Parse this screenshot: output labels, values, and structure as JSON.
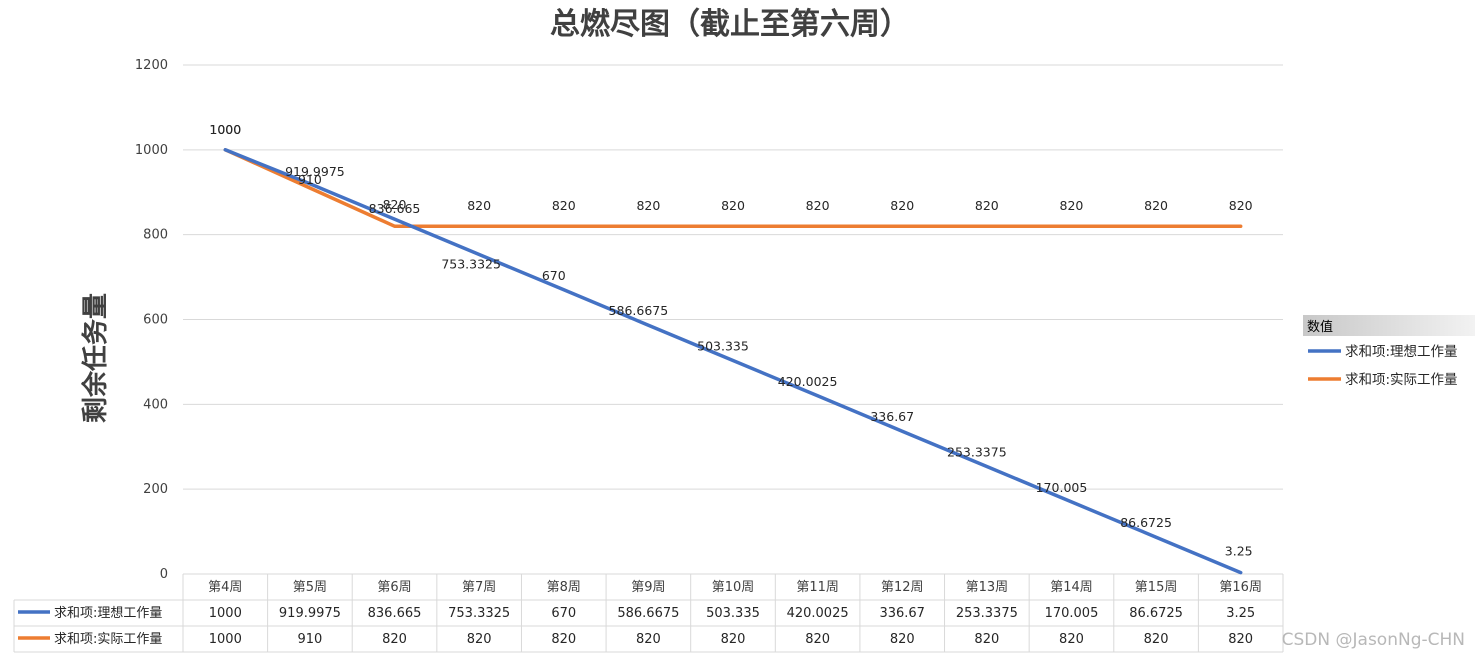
{
  "chart_data": {
    "type": "line",
    "title": "总燃尽图（截止至第六周）",
    "ylabel": "剩余任务量",
    "xlabel": "",
    "ylim": [
      0,
      1200
    ],
    "yticks": [
      0,
      200,
      400,
      600,
      800,
      1000,
      1200
    ],
    "grid": true,
    "categories": [
      "第4周",
      "第5周",
      "第6周",
      "第7周",
      "第8周",
      "第9周",
      "第10周",
      "第11周",
      "第12周",
      "第13周",
      "第14周",
      "第15周",
      "第16周"
    ],
    "series": [
      {
        "name": "求和项:理想工作量",
        "color": "#4472c4",
        "values": [
          1000,
          919.9975,
          836.665,
          753.3325,
          670,
          586.6675,
          503.335,
          420.0025,
          336.67,
          253.3375,
          170.005,
          86.6725,
          3.25
        ],
        "labels": [
          "1000",
          "919.9975",
          "836.665",
          "753.3325",
          "670",
          "586.6675",
          "503.335",
          "420.0025",
          "336.67",
          "253.3375",
          "170.005",
          "86.6725",
          "3.25"
        ]
      },
      {
        "name": "求和项:实际工作量",
        "color": "#ed7d31",
        "values": [
          1000,
          910,
          820,
          820,
          820,
          820,
          820,
          820,
          820,
          820,
          820,
          820,
          820
        ],
        "labels": [
          "1000",
          "910",
          "820",
          "820",
          "820",
          "820",
          "820",
          "820",
          "820",
          "820",
          "820",
          "820",
          "820"
        ]
      }
    ],
    "legend": {
      "title": "数值",
      "position": "right"
    },
    "data_table": true
  },
  "watermark": "CSDN @JasonNg-CHN"
}
